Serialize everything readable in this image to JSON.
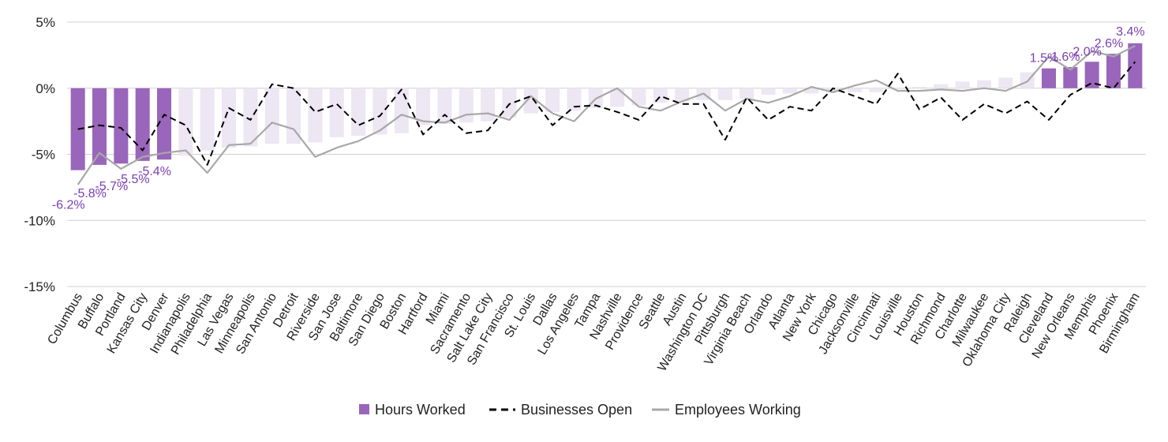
{
  "chart_data": {
    "type": "bar",
    "categories": [
      "Columbus",
      "Buffalo",
      "Portland",
      "Kansas City",
      "Denver",
      "Indianapolis",
      "Philadelphia",
      "Las Vegas",
      "Minneapolis",
      "San Antonio",
      "Detroit",
      "Riverside",
      "San Jose",
      "Baltimore",
      "San Diego",
      "Boston",
      "Hartford",
      "Miami",
      "Sacramento",
      "Salt Lake City",
      "San Francisco",
      "St. Louis",
      "Dallas",
      "Los Angeles",
      "Tampa",
      "Nashville",
      "Providence",
      "Seattle",
      "Austin",
      "Washington DC",
      "Pittsburgh",
      "Virginia Beach",
      "Orlando",
      "Atlanta",
      "New York",
      "Chicago",
      "Jacksonville",
      "Cincinnati",
      "Louisville",
      "Houston",
      "Richmond",
      "Charlotte",
      "Milwaukee",
      "Oklahoma City",
      "Raleigh",
      "Cleveland",
      "New Orleans",
      "Memphis",
      "Phoenix",
      "Birmingham"
    ],
    "series": [
      {
        "name": "Hours Worked",
        "kind": "bar",
        "values": [
          -6.2,
          -5.8,
          -5.7,
          -5.5,
          -5.4,
          -5.1,
          -4.7,
          -4.5,
          -4.4,
          -4.2,
          -4.2,
          -4.1,
          -3.7,
          -3.6,
          -3.5,
          -3.4,
          -2.8,
          -2.7,
          -2.6,
          -2.5,
          -2.2,
          -1.9,
          -1.8,
          -1.7,
          -1.5,
          -1.4,
          -1.3,
          -1.1,
          -1.0,
          -0.9,
          -0.9,
          -0.8,
          -0.5,
          -0.4,
          -0.4,
          -0.3,
          -0.3,
          -0.3,
          -0.1,
          0.1,
          0.3,
          0.5,
          0.6,
          0.8,
          1.2,
          1.5,
          1.6,
          2.0,
          2.6,
          3.4
        ],
        "labels": [
          "-6.2%",
          "-5.8%",
          "-5.7%",
          "-5.5%",
          "-5.4%",
          "",
          "",
          "",
          "",
          "",
          "",
          "",
          "",
          "",
          "",
          "",
          "",
          "",
          "",
          "",
          "",
          "",
          "",
          "",
          "",
          "",
          "",
          "",
          "",
          "",
          "",
          "",
          "",
          "",
          "",
          "",
          "",
          "",
          "",
          "",
          "",
          "",
          "",
          "",
          "",
          "1.5%",
          "1.6%",
          "2.0%",
          "2.6%",
          "3.4%"
        ]
      },
      {
        "name": "Businesses Open",
        "kind": "line-dashed",
        "values": [
          -3.1,
          -2.8,
          -3.0,
          -4.7,
          -2.0,
          -2.8,
          -5.8,
          -1.5,
          -2.4,
          0.3,
          0.0,
          -1.8,
          -1.2,
          -2.8,
          -2.1,
          -0.1,
          -3.5,
          -2.0,
          -3.4,
          -3.2,
          -1.2,
          -0.6,
          -2.8,
          -1.4,
          -1.3,
          -1.8,
          -2.4,
          -0.6,
          -1.2,
          -1.2,
          -3.9,
          -0.7,
          -2.4,
          -1.4,
          -1.7,
          0.0,
          -0.6,
          -1.2,
          1.1,
          -1.6,
          -0.7,
          -2.4,
          -1.2,
          -1.9,
          -1.0,
          -2.4,
          -0.5,
          0.4,
          0.0,
          2.0
        ]
      },
      {
        "name": "Employees Working",
        "kind": "line",
        "values": [
          -7.3,
          -4.9,
          -6.1,
          -5.2,
          -4.9,
          -4.7,
          -6.4,
          -4.3,
          -4.2,
          -2.6,
          -3.1,
          -5.2,
          -4.5,
          -4.0,
          -3.2,
          -2.0,
          -2.5,
          -2.6,
          -2.0,
          -1.9,
          -2.4,
          -0.6,
          -1.9,
          -2.5,
          -0.8,
          0.0,
          -1.4,
          -1.7,
          -1.0,
          -0.4,
          -1.7,
          -0.8,
          -1.1,
          -0.6,
          0.1,
          -0.3,
          0.2,
          0.6,
          -0.2,
          -0.2,
          -0.1,
          -0.2,
          0.0,
          -0.2,
          0.5,
          2.4,
          1.4,
          2.8,
          2.4,
          3.2
        ]
      }
    ],
    "y_ticks": [
      "5%",
      "0%",
      "-5%",
      "-10%",
      "-15%"
    ],
    "ylim": [
      -15,
      5
    ],
    "grid": true,
    "legend_position": "bottom",
    "colors": {
      "bar_highlight": "#9966BB",
      "bar_muted": "#EDE6F3",
      "businesses_line": "#000000",
      "employees_line": "#A8A8A8",
      "label_text": "#7A3FB0",
      "grid": "#D0D0D0"
    }
  }
}
